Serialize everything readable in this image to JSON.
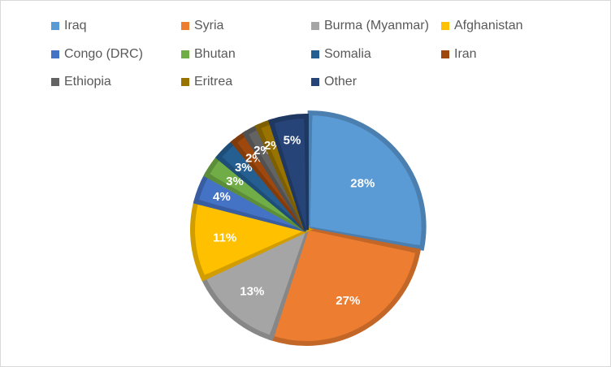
{
  "chart_data": {
    "type": "pie",
    "title": "",
    "legend_position": "top",
    "slices": [
      {
        "name": "Iraq",
        "value": 28,
        "label": "28%",
        "color": "#5B9BD5"
      },
      {
        "name": "Syria",
        "value": 27,
        "label": "27%",
        "color": "#ED7D31"
      },
      {
        "name": "Burma (Myanmar)",
        "value": 13,
        "label": "13%",
        "color": "#A5A5A5"
      },
      {
        "name": "Afghanistan",
        "value": 11,
        "label": "11%",
        "color": "#FFC000"
      },
      {
        "name": "Congo (DRC)",
        "value": 4,
        "label": "4%",
        "color": "#4472C4"
      },
      {
        "name": "Bhutan",
        "value": 3,
        "label": "3%",
        "color": "#70AD47"
      },
      {
        "name": "Somalia",
        "value": 3,
        "label": "3%",
        "color": "#255E91"
      },
      {
        "name": "Iran",
        "value": 2,
        "label": "2%",
        "color": "#9E480E"
      },
      {
        "name": "Ethiopia",
        "value": 2,
        "label": "2%",
        "color": "#636363"
      },
      {
        "name": "Eritrea",
        "value": 2,
        "label": "2%",
        "color": "#997300"
      },
      {
        "name": "Other",
        "value": 5,
        "label": "5%",
        "color": "#264478"
      }
    ]
  }
}
